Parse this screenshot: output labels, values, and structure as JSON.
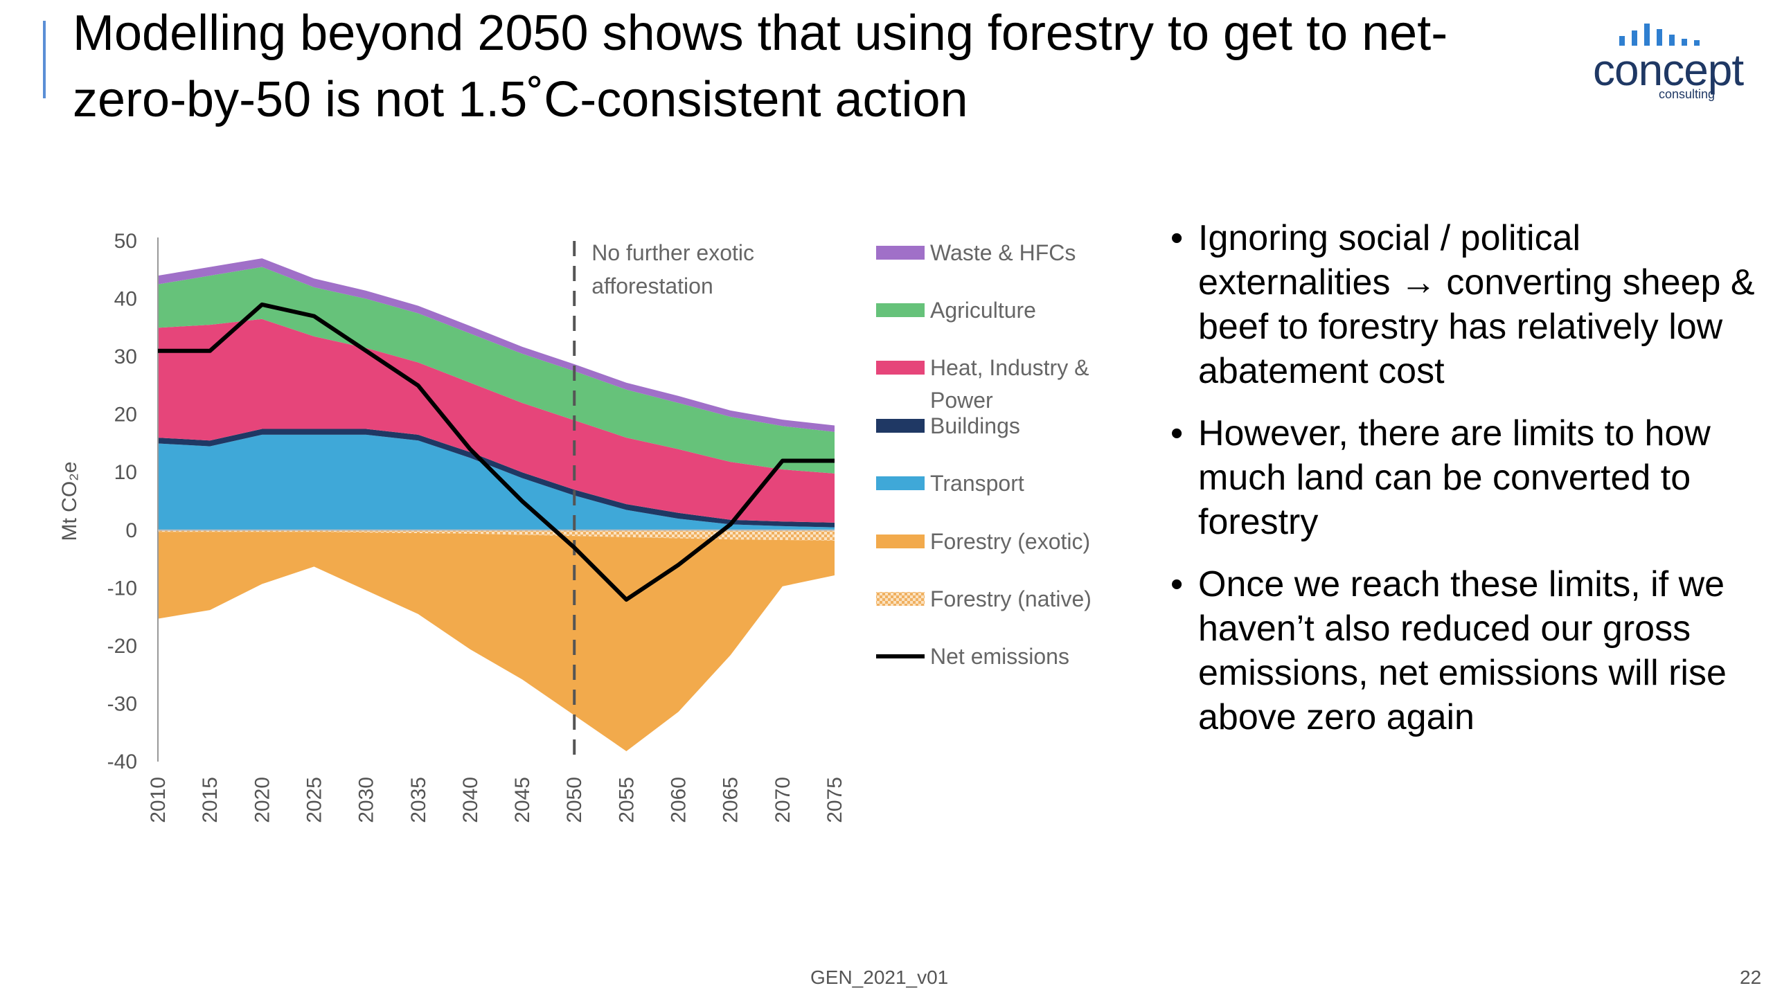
{
  "title": "Modelling beyond 2050 shows that using forestry to get to net-zero-by-50 is not 1.5˚C-consistent action",
  "logo": {
    "word": "concept",
    "sub": "consulting",
    "icon": "bar-signal-icon",
    "color": "#1f3864"
  },
  "bullets": [
    "Ignoring social / political externalities → converting sheep & beef to forestry has relatively low abatement cost",
    "However, there are limits to how much land can be converted to forestry",
    "Once we reach these limits, if we haven’t also reduced our gross emissions, net emissions will rise above zero again"
  ],
  "footer": "GEN_2021_v01",
  "page_number": "22",
  "chart_data": {
    "type": "area",
    "stacked": true,
    "ylabel": "Mt CO₂e",
    "ylim": [
      -40,
      50
    ],
    "yticks": [
      50,
      40,
      30,
      20,
      10,
      0,
      -10,
      -20,
      -30,
      -40
    ],
    "xticks": [
      2010,
      2015,
      2020,
      2025,
      2030,
      2035,
      2040,
      2045,
      2050,
      2055,
      2060,
      2065,
      2070,
      2075
    ],
    "x": [
      2010,
      2015,
      2020,
      2025,
      2030,
      2035,
      2040,
      2045,
      2050,
      2055,
      2060,
      2065,
      2070,
      2075
    ],
    "annotation": {
      "text": "No further exotic afforestation",
      "x": 2050
    },
    "legend_position": "right",
    "series": [
      {
        "name": "Waste & HFCs",
        "color": "#a070c8",
        "values": [
          1.5,
          1.5,
          1.5,
          1.5,
          1.4,
          1.3,
          1.3,
          1.2,
          1.2,
          1.2,
          1.2,
          1.1,
          1.1,
          1.1
        ]
      },
      {
        "name": "Agriculture",
        "color": "#66c27a",
        "values": [
          7.5,
          8.5,
          9,
          8.5,
          8.5,
          8.5,
          8.5,
          8.5,
          8.5,
          8.3,
          8,
          7.8,
          7.5,
          7.2
        ]
      },
      {
        "name": "Heat, Industry & Power",
        "color": "#e6457a",
        "values": [
          19,
          20,
          19,
          16,
          14,
          12.5,
          12,
          12,
          12,
          11.5,
          11,
          10,
          9,
          8.5
        ]
      },
      {
        "name": "Buildings",
        "color": "#1f3864",
        "values": [
          1,
          1,
          1,
          1,
          1,
          1,
          1,
          1,
          1,
          1,
          1,
          0.8,
          0.8,
          0.8
        ]
      },
      {
        "name": "Transport",
        "color": "#3fa8d8",
        "values": [
          15,
          14.5,
          16.5,
          16.5,
          16.5,
          15.5,
          12.5,
          9,
          6,
          3.5,
          2,
          1,
          0.7,
          0.5
        ]
      },
      {
        "name": "Forestry (exotic)",
        "color": "#f2aa4c",
        "values": [
          -15,
          -13.5,
          -9,
          -6,
          -10,
          -14,
          -20,
          -25,
          -31,
          -37,
          -30,
          -20,
          -8,
          -6
        ]
      },
      {
        "name": "Forestry (native)",
        "color": "#f5c78a",
        "pattern": true,
        "values": [
          -0.3,
          -0.3,
          -0.3,
          -0.3,
          -0.4,
          -0.5,
          -0.6,
          -0.8,
          -1,
          -1.2,
          -1.4,
          -1.6,
          -1.7,
          -1.8
        ]
      }
    ],
    "net_emissions": {
      "name": "Net emissions",
      "color": "#000000",
      "values": [
        31,
        31,
        39,
        37,
        31,
        25,
        14,
        5,
        -3,
        -12,
        -6,
        1,
        12,
        12
      ]
    }
  }
}
